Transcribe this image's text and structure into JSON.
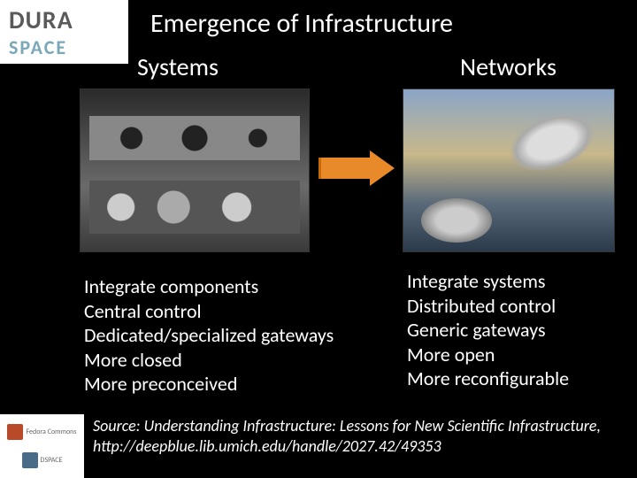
{
  "colors": {
    "slide_bg": "#000000",
    "text": "#ffffff",
    "arrow_fill": "#e88a2a",
    "arrow_edge": "#c86a0a",
    "logo_bg": "#ffffff",
    "dura_color": "#5a5a5a",
    "space_color": "#7aa8b8"
  },
  "typography": {
    "title_fontsize": 30,
    "header_fontsize": 28,
    "body_fontsize": 22,
    "source_fontsize": 18,
    "source_style": "italic",
    "font_family": "Calibri"
  },
  "logo_top": {
    "line1": "DURA",
    "line2": "SPACE"
  },
  "title": "Emergence of Infrastructure",
  "columns": {
    "left": {
      "header": "Systems",
      "image_alt": "mechanical-parts-photo",
      "bullets": [
        "Integrate components",
        "Central control",
        "Dedicated/specialized gateways",
        "More closed",
        "More preconceived"
      ]
    },
    "right": {
      "header": "Networks",
      "image_alt": "satellite-dishes-photo",
      "bullets": [
        "Integrate systems",
        "Distributed control",
        "Generic gateways",
        "More open",
        "More reconfigurable"
      ]
    }
  },
  "arrow": {
    "direction": "right",
    "fill": "#e88a2a"
  },
  "source": "Source:  Understanding Infrastructure: Lessons for New Scientific Infrastructure, http://deepblue.lib.umich.edu/handle/2027.42/49353",
  "logo_bottom": {
    "items": [
      "Fedora Commons",
      "DSPACE"
    ]
  }
}
